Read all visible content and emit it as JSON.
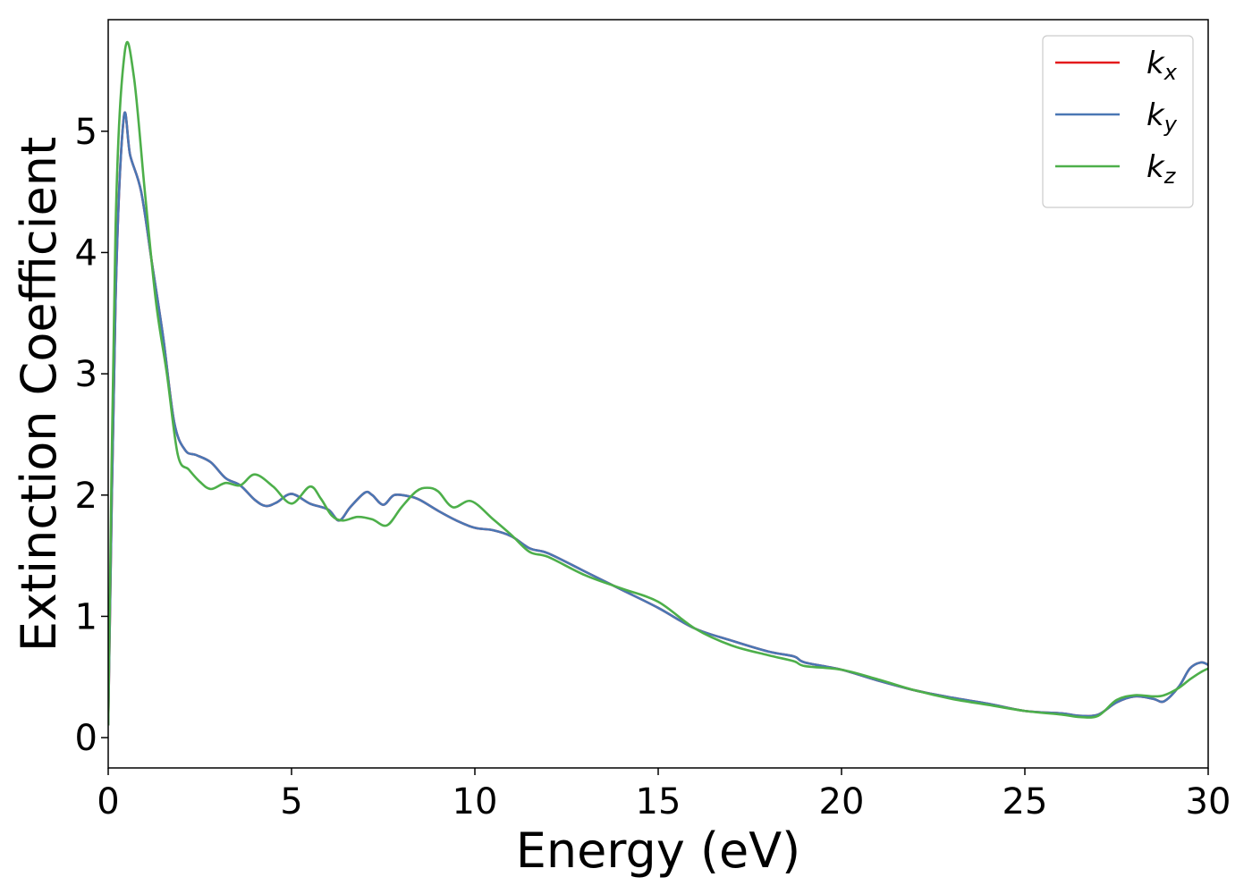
{
  "chart_data": {
    "type": "line",
    "xlabel": "Energy (eV)",
    "ylabel": "Extinction Coefficient",
    "xlim": [
      0,
      30
    ],
    "ylim": [
      -0.25,
      5.92
    ],
    "xticks": [
      0,
      5,
      10,
      15,
      20,
      25,
      30
    ],
    "yticks": [
      0,
      1,
      2,
      3,
      4,
      5
    ],
    "grid": false,
    "legend_position": "top-right",
    "series": [
      {
        "name": "k",
        "subscript": "x",
        "color": "#e41a1c",
        "x": [
          0,
          0.2,
          0.42,
          0.6,
          0.9,
          1.2,
          1.5,
          1.8,
          2.1,
          2.4,
          2.8,
          3.2,
          3.6,
          4.0,
          4.3,
          4.6,
          5.0,
          5.5,
          6.0,
          6.3,
          6.6,
          7.0,
          7.2,
          7.5,
          7.8,
          8.2,
          8.5,
          9.0,
          9.5,
          10.0,
          10.5,
          11.0,
          11.5,
          12.0,
          13.0,
          14.0,
          15.0,
          16.0,
          17.0,
          18.0,
          18.7,
          19.0,
          20.0,
          21.0,
          22.0,
          23.0,
          24.0,
          25.0,
          26.0,
          26.5,
          27.0,
          27.5,
          28.0,
          28.5,
          28.8,
          29.2,
          29.5,
          29.8,
          30.0
        ],
        "y": [
          0.1,
          3.6,
          5.1,
          4.8,
          4.5,
          3.9,
          3.3,
          2.6,
          2.37,
          2.33,
          2.27,
          2.14,
          2.08,
          1.96,
          1.91,
          1.94,
          2.01,
          1.93,
          1.88,
          1.79,
          1.9,
          2.02,
          2.0,
          1.92,
          2.0,
          1.99,
          1.96,
          1.87,
          1.79,
          1.73,
          1.71,
          1.66,
          1.56,
          1.52,
          1.37,
          1.22,
          1.07,
          0.9,
          0.8,
          0.71,
          0.67,
          0.62,
          0.56,
          0.47,
          0.39,
          0.33,
          0.28,
          0.22,
          0.2,
          0.18,
          0.19,
          0.29,
          0.34,
          0.32,
          0.3,
          0.42,
          0.57,
          0.62,
          0.6
        ]
      },
      {
        "name": "k",
        "subscript": "y",
        "color": "#4a77b4",
        "x": [
          0,
          0.2,
          0.42,
          0.6,
          0.9,
          1.2,
          1.5,
          1.8,
          2.1,
          2.4,
          2.8,
          3.2,
          3.6,
          4.0,
          4.3,
          4.6,
          5.0,
          5.5,
          6.0,
          6.3,
          6.6,
          7.0,
          7.2,
          7.5,
          7.8,
          8.2,
          8.5,
          9.0,
          9.5,
          10.0,
          10.5,
          11.0,
          11.5,
          12.0,
          13.0,
          14.0,
          15.0,
          16.0,
          17.0,
          18.0,
          18.7,
          19.0,
          20.0,
          21.0,
          22.0,
          23.0,
          24.0,
          25.0,
          26.0,
          26.5,
          27.0,
          27.5,
          28.0,
          28.5,
          28.8,
          29.2,
          29.5,
          29.8,
          30.0
        ],
        "y": [
          0.1,
          3.6,
          5.1,
          4.8,
          4.5,
          3.9,
          3.3,
          2.6,
          2.37,
          2.33,
          2.27,
          2.14,
          2.08,
          1.96,
          1.91,
          1.94,
          2.01,
          1.93,
          1.88,
          1.79,
          1.9,
          2.02,
          2.0,
          1.92,
          2.0,
          1.99,
          1.96,
          1.87,
          1.79,
          1.73,
          1.71,
          1.66,
          1.56,
          1.52,
          1.37,
          1.22,
          1.07,
          0.9,
          0.8,
          0.71,
          0.67,
          0.62,
          0.56,
          0.47,
          0.39,
          0.33,
          0.28,
          0.22,
          0.2,
          0.18,
          0.19,
          0.29,
          0.34,
          0.32,
          0.3,
          0.42,
          0.57,
          0.62,
          0.6
        ]
      },
      {
        "name": "k",
        "subscript": "z",
        "color": "#4daf4a",
        "x": [
          0,
          0.2,
          0.45,
          0.7,
          1.0,
          1.3,
          1.6,
          1.9,
          2.2,
          2.5,
          2.8,
          3.2,
          3.6,
          4.0,
          4.5,
          5.0,
          5.5,
          5.8,
          6.1,
          6.4,
          6.8,
          7.2,
          7.6,
          8.0,
          8.4,
          8.7,
          9.0,
          9.4,
          9.9,
          10.5,
          11.0,
          11.5,
          12.0,
          13.0,
          14.0,
          15.0,
          16.0,
          17.0,
          18.0,
          18.7,
          19.0,
          20.0,
          21.0,
          22.0,
          23.0,
          24.0,
          25.0,
          26.0,
          26.5,
          27.0,
          27.5,
          28.0,
          28.5,
          28.8,
          29.2,
          29.5,
          29.8,
          30.0
        ],
        "y": [
          0.1,
          4.2,
          5.65,
          5.45,
          4.5,
          3.6,
          3.0,
          2.33,
          2.21,
          2.11,
          2.05,
          2.1,
          2.08,
          2.17,
          2.07,
          1.93,
          2.07,
          1.97,
          1.83,
          1.79,
          1.82,
          1.8,
          1.75,
          1.9,
          2.03,
          2.06,
          2.03,
          1.9,
          1.95,
          1.8,
          1.67,
          1.53,
          1.49,
          1.34,
          1.23,
          1.12,
          0.9,
          0.76,
          0.68,
          0.63,
          0.59,
          0.56,
          0.48,
          0.39,
          0.32,
          0.27,
          0.22,
          0.19,
          0.17,
          0.18,
          0.31,
          0.35,
          0.34,
          0.35,
          0.41,
          0.48,
          0.54,
          0.57
        ]
      }
    ]
  }
}
